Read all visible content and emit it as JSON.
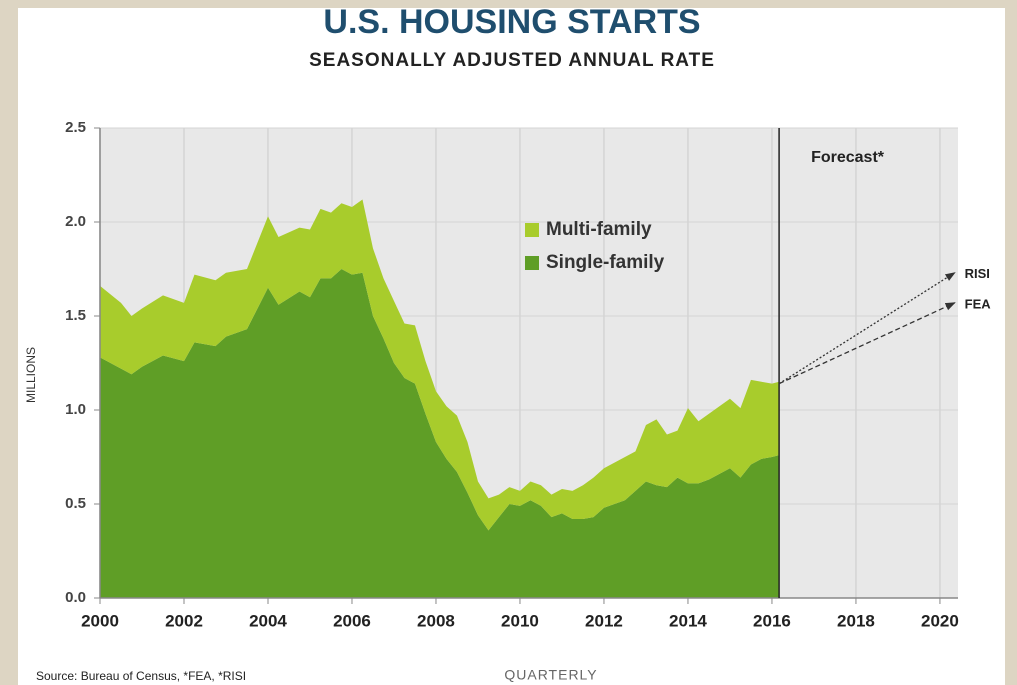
{
  "chart_data": {
    "type": "stacked_area",
    "title": "U.S. HOUSING STARTS",
    "subtitle": "SEASONALLY ADJUSTED ANNUAL RATE",
    "y_label": "MILLIONS",
    "x_label": "QUARTERLY",
    "source": "Source: Bureau of Census, *FEA, *RISI",
    "forecast_label": "Forecast*",
    "forecast_start": 2016.17,
    "x": [
      2000,
      2000.5,
      2000.75,
      2001,
      2001.5,
      2002,
      2002.25,
      2002.75,
      2003,
      2003.5,
      2004,
      2004.25,
      2004.75,
      2005,
      2005.25,
      2005.5,
      2005.75,
      2006,
      2006.25,
      2006.5,
      2006.75,
      2007,
      2007.25,
      2007.5,
      2007.75,
      2008,
      2008.25,
      2008.5,
      2008.75,
      2009,
      2009.25,
      2009.5,
      2009.75,
      2010,
      2010.25,
      2010.5,
      2010.75,
      2011,
      2011.25,
      2011.5,
      2011.75,
      2012,
      2012.5,
      2012.75,
      2013,
      2013.25,
      2013.5,
      2013.75,
      2014,
      2014.25,
      2014.5,
      2014.75,
      2015,
      2015.25,
      2015.5,
      2015.75,
      2016,
      2016.17
    ],
    "series": [
      {
        "name": "Single-family",
        "color": "#5f9e26",
        "values": [
          1.28,
          1.22,
          1.19,
          1.23,
          1.29,
          1.26,
          1.36,
          1.34,
          1.39,
          1.43,
          1.65,
          1.56,
          1.63,
          1.6,
          1.7,
          1.7,
          1.75,
          1.72,
          1.73,
          1.5,
          1.38,
          1.25,
          1.17,
          1.14,
          0.98,
          0.83,
          0.74,
          0.67,
          0.56,
          0.44,
          0.36,
          0.43,
          0.5,
          0.49,
          0.52,
          0.49,
          0.43,
          0.45,
          0.42,
          0.42,
          0.43,
          0.48,
          0.52,
          0.57,
          0.62,
          0.6,
          0.59,
          0.64,
          0.61,
          0.61,
          0.63,
          0.66,
          0.69,
          0.64,
          0.71,
          0.74,
          0.75,
          0.76
        ]
      },
      {
        "name": "Multi-family",
        "color": "#a8cc2c",
        "values": [
          0.38,
          0.35,
          0.31,
          0.31,
          0.32,
          0.31,
          0.36,
          0.35,
          0.34,
          0.32,
          0.38,
          0.36,
          0.34,
          0.36,
          0.37,
          0.35,
          0.35,
          0.36,
          0.39,
          0.36,
          0.32,
          0.33,
          0.29,
          0.31,
          0.28,
          0.27,
          0.28,
          0.3,
          0.27,
          0.18,
          0.17,
          0.12,
          0.09,
          0.08,
          0.1,
          0.11,
          0.12,
          0.13,
          0.15,
          0.18,
          0.21,
          0.21,
          0.23,
          0.21,
          0.3,
          0.35,
          0.28,
          0.25,
          0.4,
          0.33,
          0.35,
          0.36,
          0.37,
          0.37,
          0.45,
          0.41,
          0.39,
          0.39
        ]
      }
    ],
    "forecasts": [
      {
        "name": "RISI",
        "x": [
          2016.17,
          2020.35
        ],
        "values": [
          1.14,
          1.73
        ]
      },
      {
        "name": "FEA",
        "x": [
          2016.17,
          2020.35
        ],
        "values": [
          1.14,
          1.57
        ]
      }
    ],
    "xlim": [
      2000,
      2020.43
    ],
    "xticks": [
      2000,
      2002,
      2004,
      2006,
      2008,
      2010,
      2012,
      2014,
      2016,
      2018,
      2020
    ],
    "ylim": [
      0,
      2.5
    ],
    "yticks": [
      {
        "value": 0,
        "label": "0.0"
      },
      0.5,
      {
        "value": 1,
        "label": "1.0"
      },
      1.5,
      {
        "value": 2,
        "label": "2.0"
      },
      2.5
    ],
    "grid": true
  }
}
